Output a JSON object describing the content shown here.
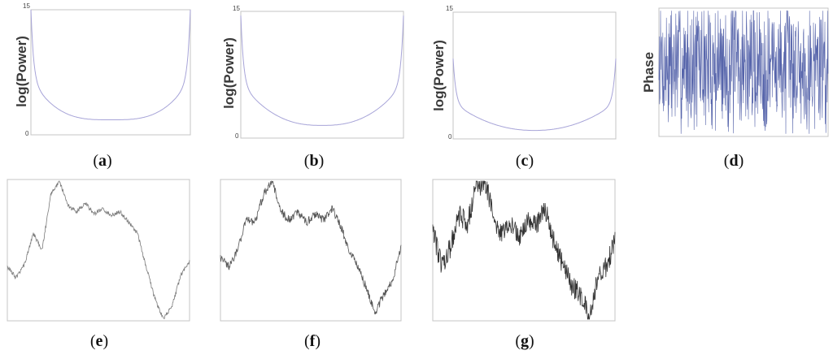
{
  "chart_data": [
    {
      "id": "a",
      "type": "line",
      "caption_letter": "a",
      "ylabel": "log(Power)",
      "ylim": [
        0,
        15
      ],
      "ytick_labels": [
        "0",
        "15"
      ],
      "shape": "power",
      "min_value": 1.8,
      "edge_value": 15,
      "curvature": 0.55,
      "color": "#a7a4d8"
    },
    {
      "id": "b",
      "type": "line",
      "caption_letter": "b",
      "ylabel": "log(Power)",
      "ylim": [
        0,
        15
      ],
      "ytick_labels": [
        "0",
        "15"
      ],
      "shape": "power",
      "min_value": 1.5,
      "edge_value": 14.5,
      "curvature": 0.35,
      "color": "#a7a4d8"
    },
    {
      "id": "c",
      "type": "line",
      "caption_letter": "c",
      "ylabel": "log(Power)",
      "ylim": [
        0,
        15
      ],
      "ytick_labels": [
        "0",
        "15"
      ],
      "shape": "power",
      "min_value": 1.0,
      "edge_value": 9.5,
      "curvature": 0.2,
      "color": "#a7a4d8"
    },
    {
      "id": "d",
      "type": "line",
      "caption_letter": "d",
      "ylabel": "Phase",
      "shape": "noise",
      "color": "#3a4a9c"
    },
    {
      "id": "e",
      "type": "line",
      "caption_letter": "e",
      "shape": "walk",
      "anchors": [
        0.62,
        0.7,
        0.6,
        0.38,
        0.5,
        0.1,
        0.0,
        0.18,
        0.22,
        0.16,
        0.24,
        0.2,
        0.25,
        0.22,
        0.3,
        0.38,
        0.62,
        0.85,
        1.0,
        0.9,
        0.68,
        0.58
      ],
      "noise": 0.015,
      "color": "#7a7a7a"
    },
    {
      "id": "f",
      "type": "line",
      "caption_letter": "f",
      "shape": "walk",
      "anchors": [
        0.55,
        0.62,
        0.5,
        0.28,
        0.3,
        0.1,
        0.0,
        0.22,
        0.28,
        0.22,
        0.3,
        0.24,
        0.28,
        0.2,
        0.33,
        0.5,
        0.62,
        0.78,
        0.95,
        0.82,
        0.72,
        0.48
      ],
      "noise": 0.03,
      "color": "#555555"
    },
    {
      "id": "g",
      "type": "line",
      "caption_letter": "g",
      "shape": "walk",
      "anchors": [
        0.35,
        0.62,
        0.48,
        0.25,
        0.3,
        0.05,
        0.0,
        0.25,
        0.4,
        0.3,
        0.4,
        0.28,
        0.32,
        0.2,
        0.45,
        0.6,
        0.75,
        0.82,
        0.98,
        0.72,
        0.62,
        0.42
      ],
      "noise": 0.08,
      "color": "#333333"
    }
  ]
}
